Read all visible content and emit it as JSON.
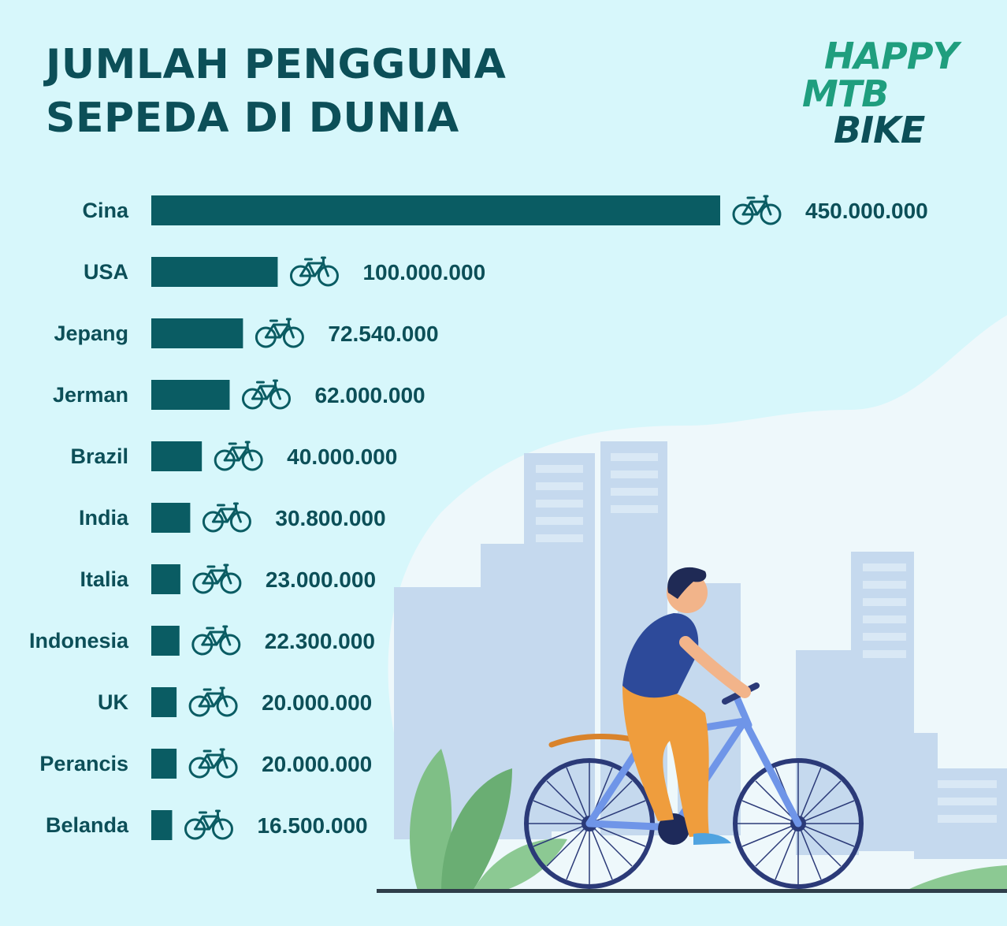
{
  "header": {
    "title_line1": "JUMLAH PENGGUNA",
    "title_line2": "SEPEDA DI DUNIA"
  },
  "logo": {
    "line1": "HAPPY",
    "line2": "MTB",
    "line3": "BIKE"
  },
  "colors": {
    "bar": "#0a5c63",
    "title": "#0c4f58",
    "logo_green": "#1f9e7e",
    "background": "#d7f7fb"
  },
  "icons": {
    "value_marker": "bicycle-icon",
    "illustration": "cyclist-illustration"
  },
  "chart_data": {
    "type": "bar",
    "orientation": "horizontal",
    "title": "JUMLAH PENGGUNA SEPEDA DI DUNIA",
    "categories": [
      "Cina",
      "USA",
      "Jepang",
      "Jerman",
      "Brazil",
      "India",
      "Italia",
      "Indonesia",
      "UK",
      "Perancis",
      "Belanda"
    ],
    "values": [
      450000000,
      100000000,
      72540000,
      62000000,
      40000000,
      30800000,
      23000000,
      22300000,
      20000000,
      20000000,
      16500000
    ],
    "value_labels": [
      "450.000.000",
      "100.000.000",
      "72.540.000",
      "62.000.000",
      "40.000.000",
      "30.800.000",
      "23.000.000",
      "22.300.000",
      "20.000.000",
      "20.000.000",
      "16.500.000"
    ],
    "xlabel": "",
    "ylabel": "",
    "grid": false,
    "legend": "none"
  }
}
